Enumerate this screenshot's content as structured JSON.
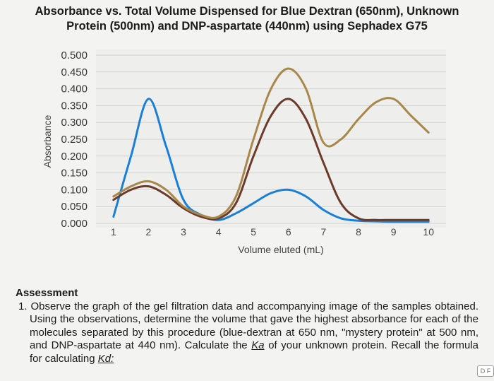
{
  "title_line1": "Absorbance vs. Total Volume Dispensed for Blue Dextran (650nm), Unknown",
  "title_line2": "Protein (500nm) and DNP-aspartate (440nm) using Sephadex G75",
  "assessment": {
    "heading": "Assessment",
    "question_number": "1.",
    "question_text": "Observe the graph of the gel filtration data and accompanying image of the samples obtained. Using the observations, determine the volume that gave the highest absorbance for each of the molecules separated by this procedure (blue-dextran at 650 nm, \"mystery protein\" at 500 nm, and DNP-aspartate at 440 nm). Calculate the",
    "question_text_end_prefix": "Ka",
    "question_text_end": " of your unknown protein. Recall the formula for calculating ",
    "ka_label": "Kd:"
  },
  "corner_badge": "D F",
  "chart_data": {
    "type": "line",
    "title": "Absorbance vs. Total Volume Dispensed for Blue Dextran (650nm), Unknown Protein (500nm) and DNP-aspartate (440nm) using Sephadex G75",
    "xlabel": "Volume eluted (mL)",
    "ylabel": "Absorbance",
    "x_ticks": [
      "1",
      "2",
      "3",
      "4",
      "5",
      "6",
      "7",
      "8",
      "9",
      "10"
    ],
    "y_ticks": [
      "0.000",
      "0.050",
      "0.100",
      "0.150",
      "0.200",
      "0.250",
      "0.300",
      "0.350",
      "0.400",
      "0.450",
      "0.500"
    ],
    "xlim": [
      0.5,
      10.5
    ],
    "ylim": [
      0,
      0.5
    ],
    "grid": true,
    "legend": "none",
    "series": [
      {
        "color": "#1a7fd6",
        "x": [
          1,
          1.5,
          2,
          2.5,
          3,
          3.5,
          4,
          4.5,
          5,
          5.5,
          6,
          6.5,
          7,
          7.5,
          8,
          8.5,
          9,
          10
        ],
        "y": [
          0.02,
          0.2,
          0.37,
          0.23,
          0.07,
          0.025,
          0.01,
          0.03,
          0.06,
          0.09,
          0.1,
          0.08,
          0.04,
          0.015,
          0.008,
          0.006,
          0.005,
          0.005
        ]
      },
      {
        "color": "#6b3a2a",
        "x": [
          1,
          1.5,
          2,
          2.5,
          3,
          3.5,
          4,
          4.5,
          5,
          5.5,
          6,
          6.5,
          7,
          7.5,
          8,
          8.5,
          9,
          10
        ],
        "y": [
          0.07,
          0.1,
          0.11,
          0.085,
          0.045,
          0.02,
          0.015,
          0.06,
          0.2,
          0.32,
          0.37,
          0.31,
          0.18,
          0.06,
          0.015,
          0.01,
          0.01,
          0.01
        ]
      },
      {
        "color": "#a8874a",
        "x": [
          1,
          1.5,
          2,
          2.5,
          3,
          3.5,
          4,
          4.5,
          5,
          5.5,
          6,
          6.5,
          7,
          7.5,
          8,
          8.5,
          9,
          9.5,
          10
        ],
        "y": [
          0.08,
          0.11,
          0.125,
          0.1,
          0.05,
          0.025,
          0.02,
          0.08,
          0.25,
          0.4,
          0.46,
          0.4,
          0.24,
          0.25,
          0.31,
          0.36,
          0.37,
          0.32,
          0.27
        ]
      }
    ]
  }
}
